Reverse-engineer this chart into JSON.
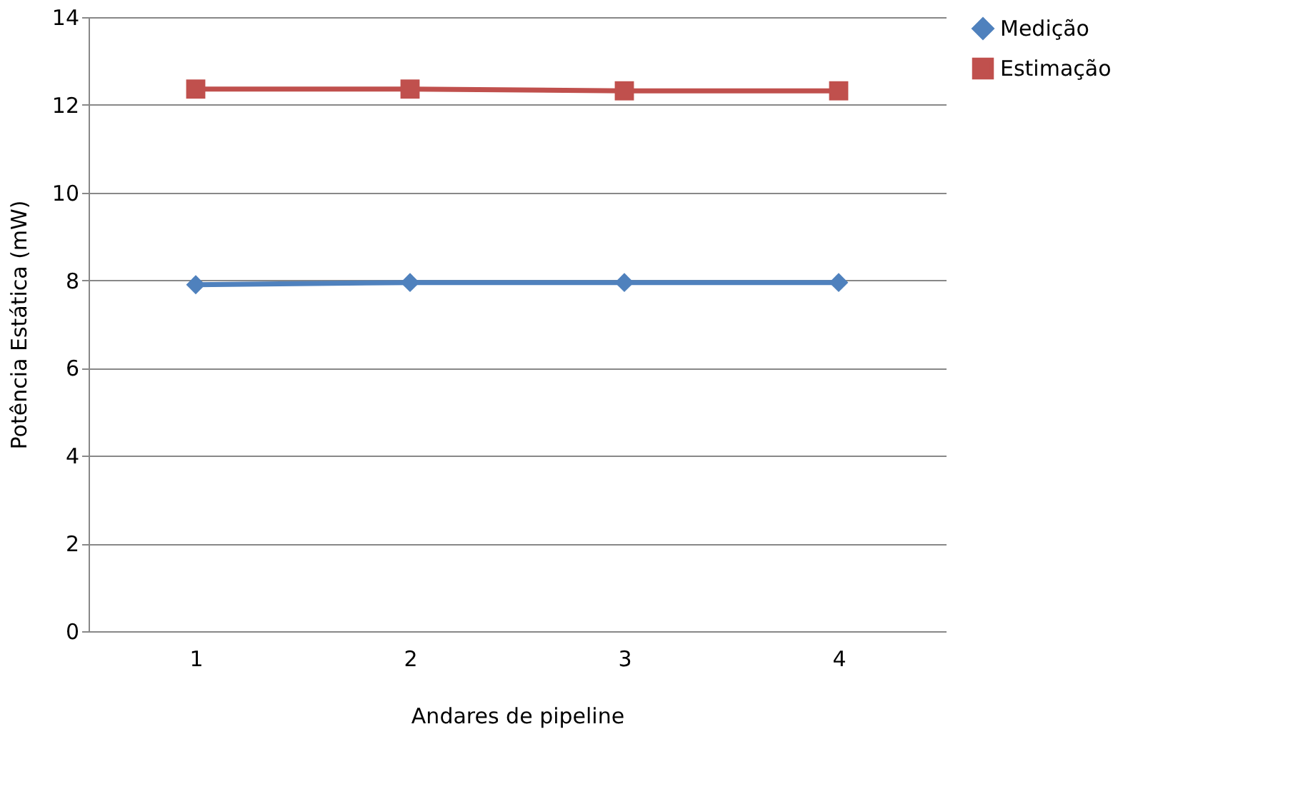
{
  "chart_data": {
    "type": "line",
    "xlabel": "Andares de pipeline",
    "ylabel": "Potência Estática (mW)",
    "categories": [
      "1",
      "2",
      "3",
      "4"
    ],
    "series": [
      {
        "name": "Medição",
        "color": "#4f81bd",
        "marker": "diamond",
        "values": [
          7.9,
          7.95,
          7.95,
          7.95
        ]
      },
      {
        "name": "Estimação",
        "color": "#c0504d",
        "marker": "square",
        "values": [
          12.36,
          12.36,
          12.32,
          12.32
        ]
      }
    ],
    "ylim": [
      0,
      14
    ],
    "yticks": [
      0,
      2,
      4,
      6,
      8,
      10,
      12,
      14
    ],
    "grid": "y",
    "legend": "right",
    "line_style": "solid"
  }
}
